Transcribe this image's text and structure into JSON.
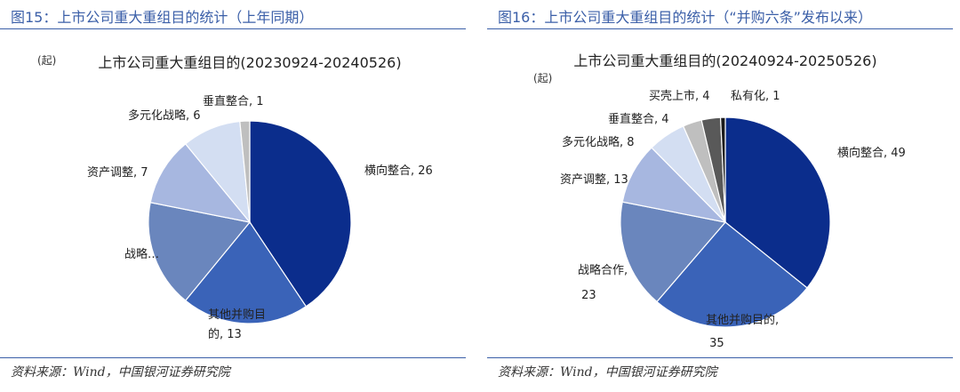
{
  "panels": [
    {
      "figure_title": "图15：上市公司重大重组目的统计（上年同期）",
      "source": "资料来源：Wind，中国银河证券研究院",
      "chart_data": {
        "type": "pie",
        "title": "上市公司重大重组目的(20230924-20240526)",
        "unit": "(起)",
        "slices": [
          {
            "label": "横向整合, 26",
            "value": 26,
            "color": "#0b2d8c"
          },
          {
            "label": "其他并购目的, 13",
            "value": 13,
            "color": "#3a63b8"
          },
          {
            "label": "战略…",
            "value": 11,
            "color": "#6a86bd"
          },
          {
            "label": "资产调整, 7",
            "value": 7,
            "color": "#a7b7e0"
          },
          {
            "label": "多元化战略, 6",
            "value": 6,
            "color": "#d3def2"
          },
          {
            "label": "垂直整合, 1",
            "value": 1,
            "color": "#bfbfbf"
          }
        ]
      }
    },
    {
      "figure_title": "图16：上市公司重大重组目的统计（“并购六条”发布以来）",
      "source": "资料来源：Wind，中国银河证券研究院",
      "chart_data": {
        "type": "pie",
        "title": "上市公司重大重组目的(20240924-20250526)",
        "unit": "(起)",
        "slices": [
          {
            "label": "横向整合, 49",
            "value": 49,
            "color": "#0b2d8c"
          },
          {
            "label": "其他并购目的, 35",
            "value": 35,
            "color": "#3a63b8"
          },
          {
            "label": "战略合作, 23",
            "value": 23,
            "color": "#6a86bd"
          },
          {
            "label": "资产调整, 13",
            "value": 13,
            "color": "#a7b7e0"
          },
          {
            "label": "多元化战略, 8",
            "value": 8,
            "color": "#d3def2"
          },
          {
            "label": "垂直整合, 4",
            "value": 4,
            "color": "#bfbfbf"
          },
          {
            "label": "买壳上市, 4",
            "value": 4,
            "color": "#595959"
          },
          {
            "label": "私有化, 1",
            "value": 1,
            "color": "#1a1a1a"
          }
        ]
      }
    }
  ]
}
